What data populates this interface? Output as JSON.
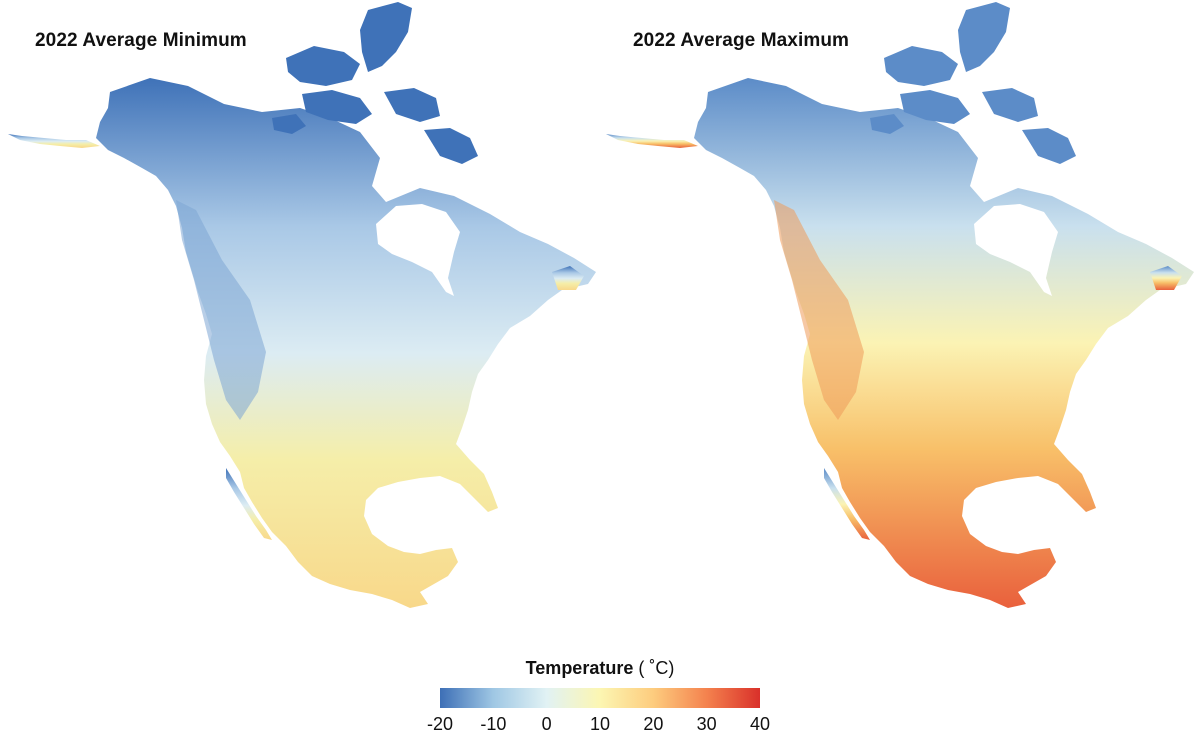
{
  "panels": [
    {
      "title": "2022 Average Minimum",
      "variable": "minimum",
      "colors": {
        "arctic": "#3f72b8",
        "north": "#a9c8e6",
        "mid": "#dcecf3",
        "south": "#f5eea9",
        "mexico": "#f8d88a",
        "mountains": "#7ea6d4"
      }
    },
    {
      "title": "2022 Average Maximum",
      "variable": "maximum",
      "colors": {
        "arctic": "#5c8cc8",
        "north": "#c9e0ee",
        "mid": "#fbf3b4",
        "south": "#f8c069",
        "mexico": "#e9603c",
        "mountains": "#ee9a5a"
      }
    }
  ],
  "legend": {
    "title": "Temperature",
    "unit": "( ˚C)",
    "ticks": [
      "-20",
      "-10",
      "0",
      "10",
      "20",
      "30",
      "40"
    ],
    "min": -20,
    "max": 40,
    "color_stops": [
      {
        "value": -20,
        "color": "#3d6fb6"
      },
      {
        "value": -10,
        "color": "#9fc7e4"
      },
      {
        "value": 0,
        "color": "#e1f2f4"
      },
      {
        "value": 10,
        "color": "#fcf6b2"
      },
      {
        "value": 20,
        "color": "#fdcc7e"
      },
      {
        "value": 30,
        "color": "#f4824e"
      },
      {
        "value": 40,
        "color": "#d9302a"
      }
    ]
  }
}
